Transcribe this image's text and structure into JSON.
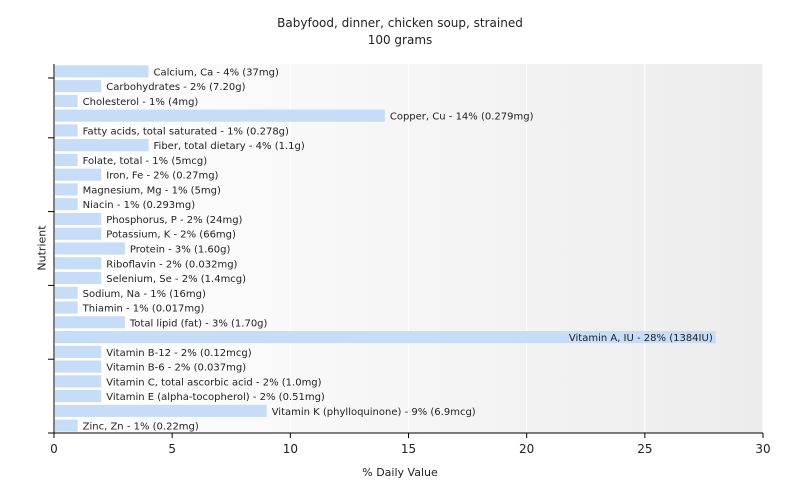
{
  "chart_data": {
    "type": "bar",
    "orientation": "horizontal",
    "title": "Babyfood, dinner, chicken soup, strained",
    "subtitle": "100 grams",
    "xlabel": "% Daily Value",
    "ylabel": "Nutrient",
    "xlim": [
      0,
      30
    ],
    "xticks": [
      0,
      5,
      10,
      15,
      20,
      25,
      30
    ],
    "grid": true,
    "bar_color": "#c6dcf7",
    "bars": [
      {
        "label": "Calcium, Ca - 4% (37mg)",
        "value": 4
      },
      {
        "label": "Carbohydrates - 2% (7.20g)",
        "value": 2
      },
      {
        "label": "Cholesterol - 1% (4mg)",
        "value": 1
      },
      {
        "label": "Copper, Cu - 14% (0.279mg)",
        "value": 14
      },
      {
        "label": "Fatty acids, total saturated - 1% (0.278g)",
        "value": 1
      },
      {
        "label": "Fiber, total dietary - 4% (1.1g)",
        "value": 4
      },
      {
        "label": "Folate, total - 1% (5mcg)",
        "value": 1
      },
      {
        "label": "Iron, Fe - 2% (0.27mg)",
        "value": 2
      },
      {
        "label": "Magnesium, Mg - 1% (5mg)",
        "value": 1
      },
      {
        "label": "Niacin - 1% (0.293mg)",
        "value": 1
      },
      {
        "label": "Phosphorus, P - 2% (24mg)",
        "value": 2
      },
      {
        "label": "Potassium, K - 2% (66mg)",
        "value": 2
      },
      {
        "label": "Protein - 3% (1.60g)",
        "value": 3
      },
      {
        "label": "Riboflavin - 2% (0.032mg)",
        "value": 2
      },
      {
        "label": "Selenium, Se - 2% (1.4mcg)",
        "value": 2
      },
      {
        "label": "Sodium, Na - 1% (16mg)",
        "value": 1
      },
      {
        "label": "Thiamin - 1% (0.017mg)",
        "value": 1
      },
      {
        "label": "Total lipid (fat) - 3% (1.70g)",
        "value": 3
      },
      {
        "label": "Vitamin A, IU - 28% (1384IU)",
        "value": 28
      },
      {
        "label": "Vitamin B-12 - 2% (0.12mcg)",
        "value": 2
      },
      {
        "label": "Vitamin B-6 - 2% (0.037mg)",
        "value": 2
      },
      {
        "label": "Vitamin C, total ascorbic acid - 2% (1.0mg)",
        "value": 2
      },
      {
        "label": "Vitamin E (alpha-tocopherol) - 2% (0.51mg)",
        "value": 2
      },
      {
        "label": "Vitamin K (phylloquinone) - 9% (6.9mcg)",
        "value": 9
      },
      {
        "label": "Zinc, Zn - 1% (0.22mg)",
        "value": 1
      }
    ]
  }
}
